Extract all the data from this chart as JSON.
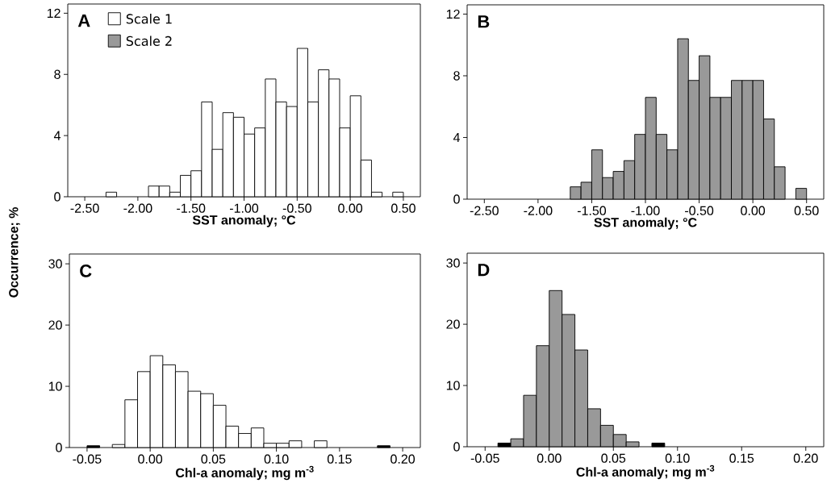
{
  "chart_data": [
    {
      "type": "histogram",
      "title": "A",
      "ylabel": "Occurrence; %",
      "xlabel": "SST anomaly; °C",
      "legend": "top left",
      "bins": [
        -2.3,
        -2.2,
        -2.1,
        -2.0,
        -1.9,
        -1.8,
        -1.7,
        -1.6,
        -1.5,
        -1.4,
        -1.3,
        -1.2,
        -1.1,
        -1.0,
        -0.9,
        -0.8,
        -0.7,
        -0.6,
        -0.5,
        -0.4,
        -0.3,
        -0.2,
        -0.1,
        0.0,
        0.1,
        0.2,
        0.3,
        0.4,
        0.5
      ],
      "series": [
        {
          "name": "Scale 1",
          "color": "#ffffff",
          "values": [
            0.3,
            0,
            0,
            0,
            0.7,
            0.7,
            0.3,
            1.4,
            1.7,
            6.2,
            3.1,
            5.5,
            5.2,
            4.1,
            4.5,
            7.7,
            6.2,
            5.9,
            9.7,
            6.2,
            8.3,
            7.7,
            4.5,
            6.6,
            2.4,
            0.3,
            0,
            0.3
          ]
        }
      ],
      "xlim": [
        -2.66,
        0.66
      ],
      "ylim": [
        0,
        12.6
      ],
      "xticks": [
        {
          "value": -2.5,
          "label": "-2.50"
        },
        {
          "value": -2.0,
          "label": "-2.00"
        },
        {
          "value": -1.5,
          "label": "-1.50"
        },
        {
          "value": -1.0,
          "label": "-1.00"
        },
        {
          "value": -0.5,
          "label": "-0.50"
        },
        {
          "value": 0,
          "label": "0.00"
        },
        {
          "value": 0.5,
          "label": "0.50"
        }
      ],
      "yticks": [
        0,
        4,
        8,
        12
      ]
    },
    {
      "type": "histogram",
      "title": "B",
      "xlabel": "SST anomaly; °C",
      "bins": [
        -1.7,
        -1.6,
        -1.5,
        -1.4,
        -1.3,
        -1.2,
        -1.1,
        -1.0,
        -0.9,
        -0.8,
        -0.7,
        -0.6,
        -0.5,
        -0.4,
        -0.3,
        -0.2,
        -0.1,
        0.0,
        0.1,
        0.2,
        0.3,
        0.4,
        0.5
      ],
      "series": [
        {
          "name": "Scale 2",
          "color": "#999999",
          "values": [
            0.8,
            1.1,
            3.2,
            1.4,
            1.8,
            2.5,
            4.2,
            6.6,
            4.2,
            3.2,
            10.4,
            7.7,
            9.3,
            6.6,
            6.6,
            7.7,
            7.7,
            7.7,
            5.2,
            2.1,
            0,
            0.7
          ]
        }
      ],
      "xlim": [
        -2.66,
        0.66
      ],
      "ylim": [
        0,
        12.6
      ],
      "xticks": [
        {
          "value": -2.5,
          "label": "-2.50"
        },
        {
          "value": -2.0,
          "label": "-2.00"
        },
        {
          "value": -1.5,
          "label": "-1.50"
        },
        {
          "value": -1.0,
          "label": "-1.00"
        },
        {
          "value": -0.5,
          "label": "-0.50"
        },
        {
          "value": 0,
          "label": "0.00"
        },
        {
          "value": 0.5,
          "label": "0.50"
        }
      ],
      "yticks": [
        0,
        4,
        8,
        12
      ]
    },
    {
      "type": "histogram",
      "title": "C",
      "xlabel": "Chl-a anomaly;  mg m$^{-3}$",
      "bins": [
        -0.05,
        -0.04,
        -0.03,
        -0.02,
        -0.01,
        0.0,
        0.01,
        0.02,
        0.03,
        0.04,
        0.05,
        0.06,
        0.07,
        0.08,
        0.09,
        0.1,
        0.11,
        0.12,
        0.13,
        0.14,
        0.15,
        0.16,
        0.17,
        0.18,
        0.19
      ],
      "series": [
        {
          "colors": [
            "#000000",
            "#ffffff",
            "#ffffff",
            "#ffffff",
            "#ffffff",
            "#ffffff",
            "#ffffff",
            "#ffffff",
            "#ffffff",
            "#ffffff",
            "#ffffff",
            "#ffffff",
            "#ffffff",
            "#ffffff",
            "#ffffff",
            "#ffffff",
            "#ffffff",
            "#ffffff",
            "#ffffff",
            "#ffffff",
            "#ffffff",
            "#ffffff",
            "#ffffff",
            "#000000"
          ],
          "values": [
            0.3,
            0,
            0.5,
            7.8,
            12.4,
            15.0,
            13.5,
            12.4,
            9.2,
            8.8,
            6.9,
            3.5,
            2.3,
            3.2,
            0.7,
            0.7,
            1.1,
            0,
            1.1,
            0,
            0,
            0,
            0,
            0.3
          ]
        }
      ],
      "xlim": [
        -0.064,
        0.214
      ],
      "ylim": [
        0,
        31.6
      ],
      "xticks": [
        {
          "value": -0.05,
          "label": "-0.05"
        },
        {
          "value": 0,
          "label": "0.00"
        },
        {
          "value": 0.05,
          "label": "0.05"
        },
        {
          "value": 0.1,
          "label": "0.10"
        },
        {
          "value": 0.15,
          "label": "0.15"
        },
        {
          "value": 0.2,
          "label": "0.20"
        }
      ],
      "yticks": [
        0,
        10,
        20,
        30
      ]
    },
    {
      "type": "histogram",
      "title": "D",
      "xlabel": "Chl-a anomaly;  mg m$^{-3}$",
      "bins": [
        -0.04,
        -0.03,
        -0.02,
        -0.01,
        0.0,
        0.01,
        0.02,
        0.03,
        0.04,
        0.05,
        0.06,
        0.07,
        0.08,
        0.09
      ],
      "series": [
        {
          "colors": [
            "#000000",
            "#999999",
            "#999999",
            "#999999",
            "#999999",
            "#999999",
            "#999999",
            "#999999",
            "#999999",
            "#999999",
            "#999999",
            "#999999",
            "#000000"
          ],
          "values": [
            0.6,
            1.3,
            8.4,
            16.5,
            25.5,
            21.6,
            15.8,
            6.2,
            3.5,
            2.0,
            0.8,
            0,
            0.6
          ]
        }
      ],
      "xlim": [
        -0.064,
        0.214
      ],
      "ylim": [
        0,
        31.6
      ],
      "xticks": [
        {
          "value": -0.05,
          "label": "-0.05"
        },
        {
          "value": 0,
          "label": "0.00"
        },
        {
          "value": 0.05,
          "label": "0.05"
        },
        {
          "value": 0.1,
          "label": "0.10"
        },
        {
          "value": 0.15,
          "label": "0.15"
        },
        {
          "value": 0.2,
          "label": "0.20"
        }
      ],
      "yticks": [
        0,
        10,
        20,
        30
      ]
    }
  ]
}
